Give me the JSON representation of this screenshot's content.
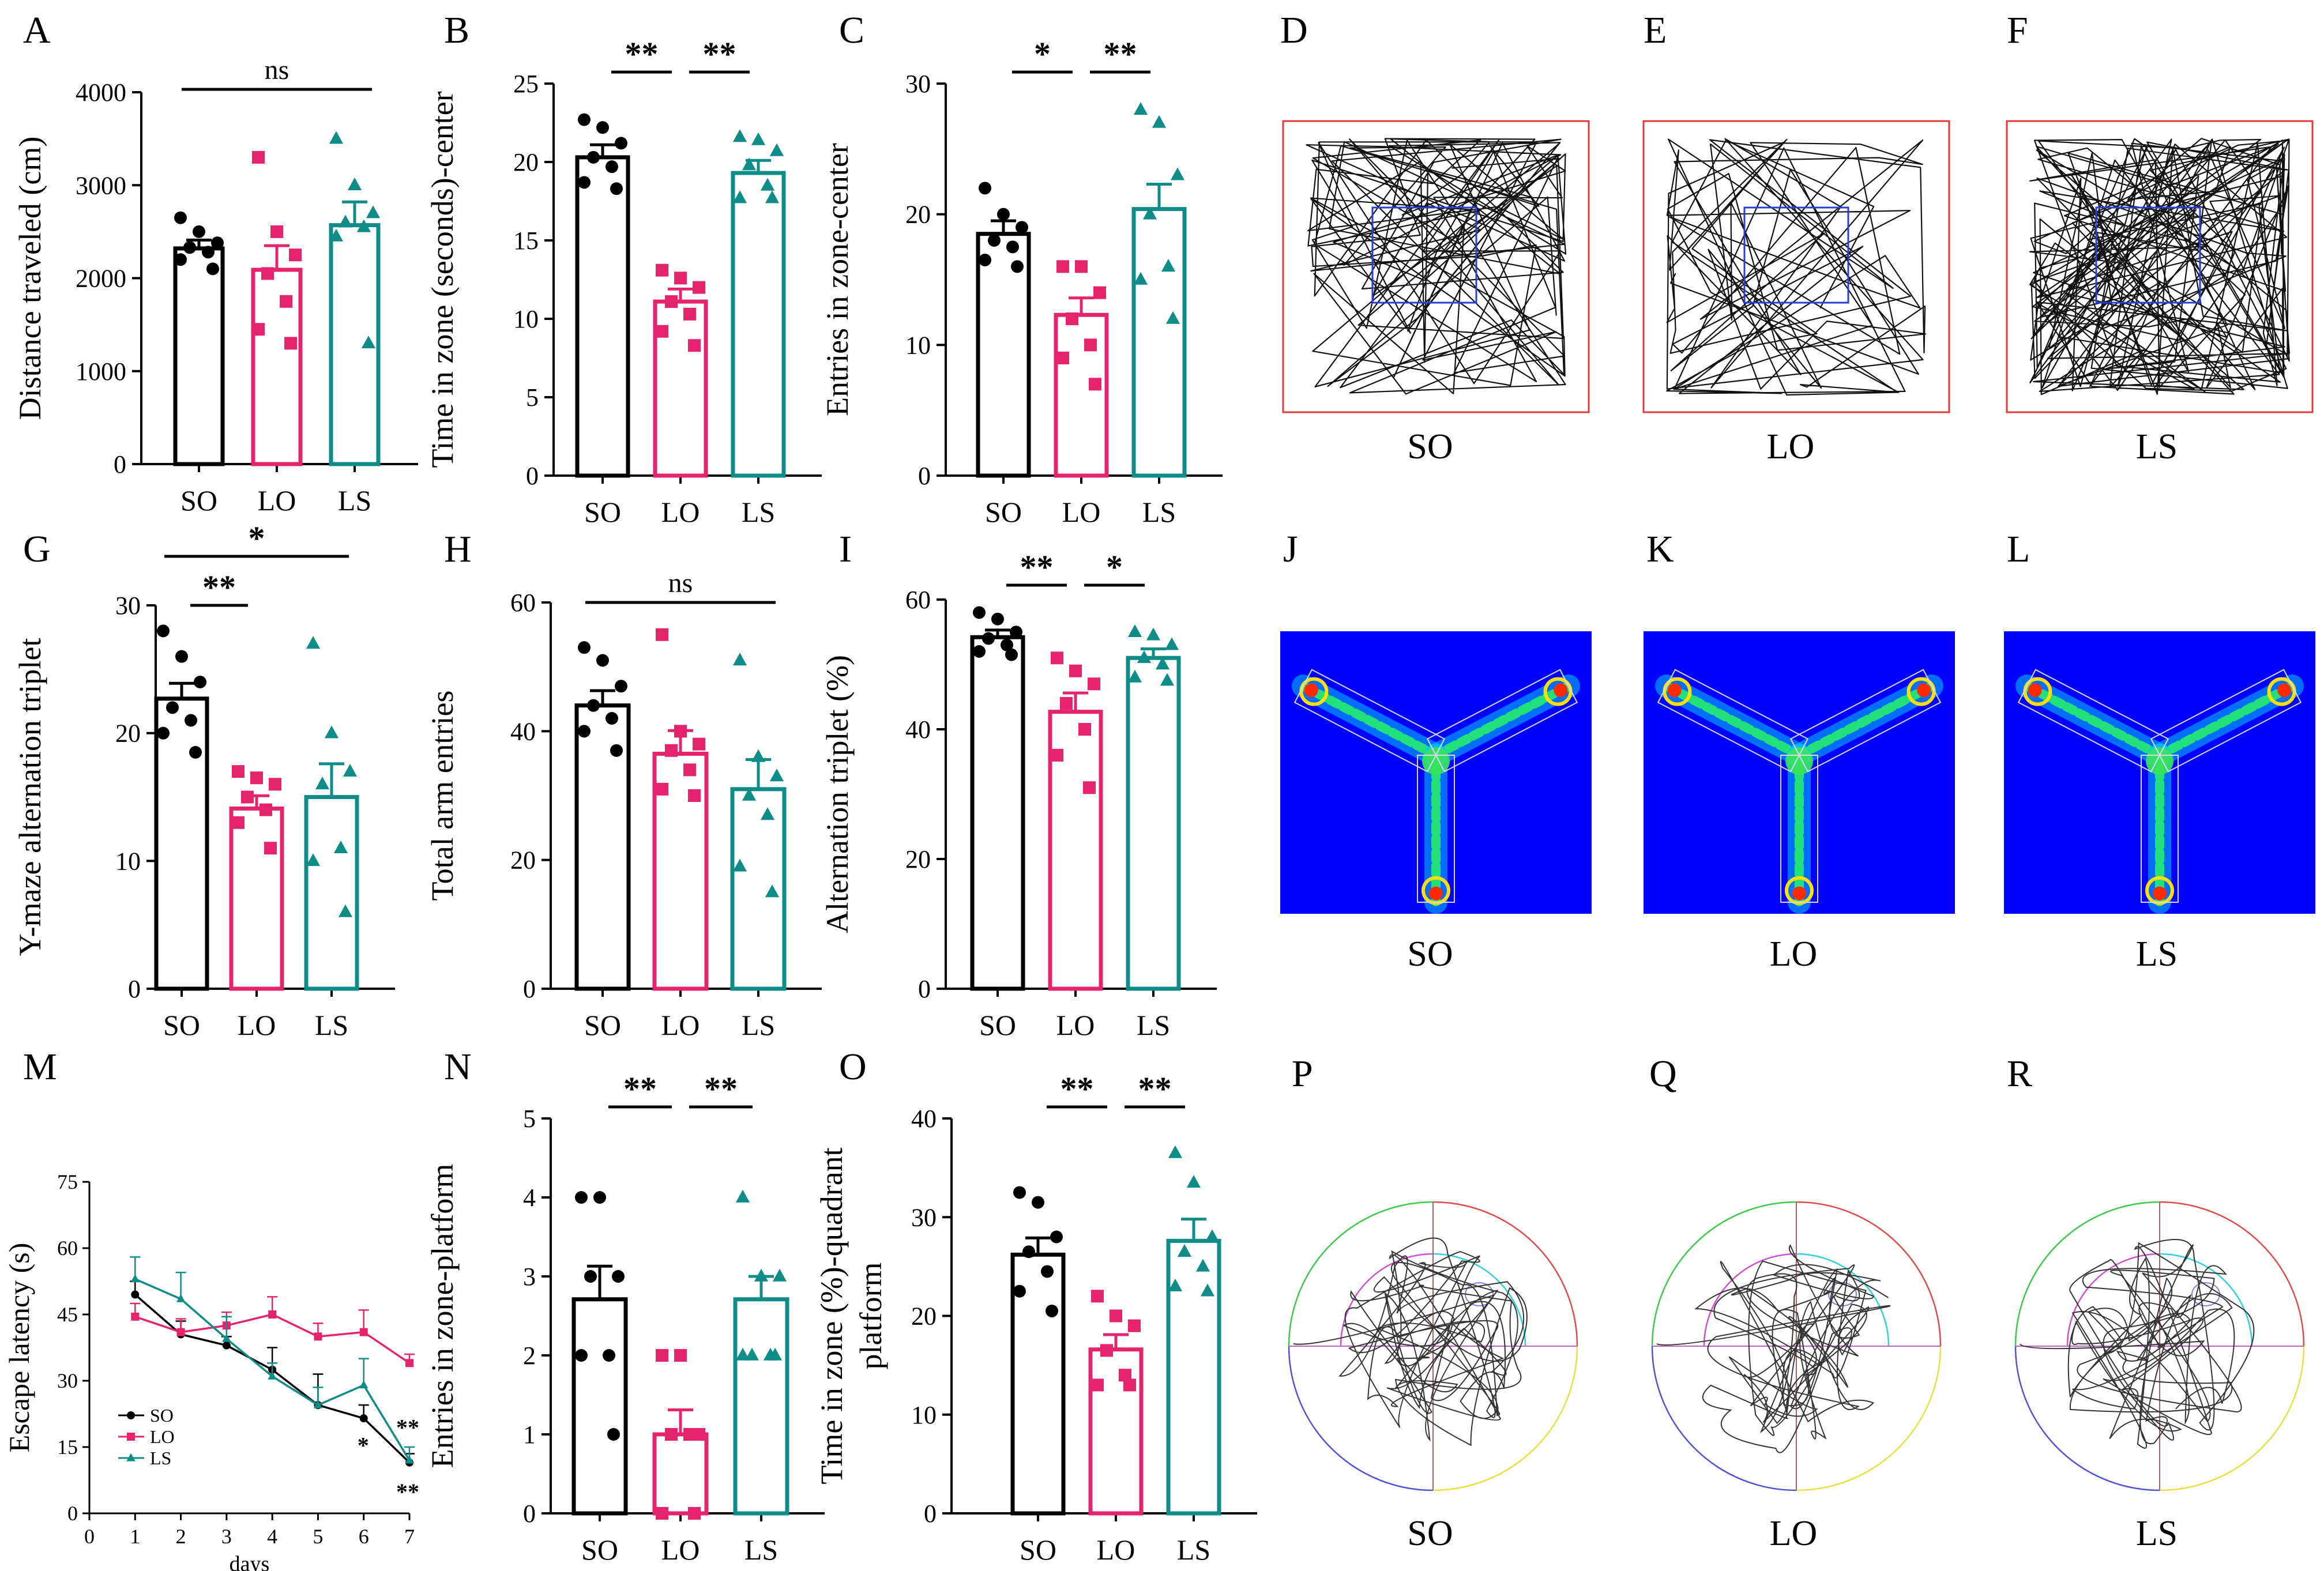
{
  "colors": {
    "SO": "#000000",
    "LO": "#e6246e",
    "LS": "#0e8c87",
    "boxRed": "#e23a3a",
    "boxBlue": "#2a3dd6",
    "heatBg": "#0000ff"
  },
  "chart_data": [
    {
      "panel": "A",
      "type": "bar",
      "ylabel": "Distance traveled (cm)",
      "categories": [
        "SO",
        "LO",
        "LS"
      ],
      "yticks": [
        0,
        1000,
        2000,
        3000,
        4000
      ],
      "ylim": [
        0,
        4000
      ],
      "means": [
        2320,
        2090,
        2570
      ],
      "sem": [
        90,
        260,
        250
      ],
      "points": [
        [
          2650,
          2500,
          2380,
          2330,
          2280,
          2200,
          2100
        ],
        [
          3300,
          2500,
          2250,
          2050,
          1750,
          1450,
          1300
        ],
        [
          3500,
          3000,
          2700,
          2600,
          2550,
          2450,
          1300
        ]
      ],
      "brackets": [
        {
          "from": 0,
          "to": 2,
          "label": "ns"
        }
      ],
      "xticklabels": [
        "SO",
        "LO",
        "LS"
      ]
    },
    {
      "panel": "B",
      "type": "bar",
      "ylabel": "Time in zone (seconds)-center",
      "categories": [
        "SO",
        "LO",
        "LS"
      ],
      "yticks": [
        0,
        5,
        10,
        15,
        20,
        25
      ],
      "ylim": [
        0,
        25
      ],
      "means": [
        20.3,
        11.1,
        19.3
      ],
      "sem": [
        0.8,
        0.8,
        0.8
      ],
      "points": [
        [
          22.7,
          22.2,
          21.2,
          20.3,
          19.7,
          18.7,
          18.3
        ],
        [
          13.1,
          12.6,
          12.0,
          11.1,
          10.3,
          9.2,
          8.3
        ],
        [
          21.6,
          21.4,
          20.7,
          19.8,
          18.5,
          17.7,
          17.7
        ]
      ],
      "brackets": [
        {
          "from": 0,
          "to": 1,
          "label": "**"
        },
        {
          "from": 1,
          "to": 2,
          "label": "**"
        }
      ],
      "xticklabels": [
        "SO",
        "LO",
        "LS"
      ]
    },
    {
      "panel": "C",
      "type": "bar",
      "ylabel": "Entries in zone-center",
      "categories": [
        "SO",
        "LO",
        "LS"
      ],
      "yticks": [
        0,
        10,
        20,
        30
      ],
      "ylim": [
        0,
        30
      ],
      "means": [
        18.5,
        12.3,
        20.4
      ],
      "sem": [
        1.0,
        1.3,
        1.9
      ],
      "points": [
        [
          22,
          20,
          19,
          18,
          17.5,
          16.5,
          16
        ],
        [
          16,
          16,
          14,
          12,
          10,
          9,
          7
        ],
        [
          28,
          27,
          23,
          20,
          16,
          15,
          12
        ]
      ],
      "brackets": [
        {
          "from": 0,
          "to": 1,
          "label": "*"
        },
        {
          "from": 1,
          "to": 2,
          "label": "**"
        }
      ],
      "xticklabels": [
        "SO",
        "LO",
        "LS"
      ]
    },
    {
      "panel": "G",
      "type": "bar",
      "ylabel": "Y-maze alternation triplet",
      "categories": [
        "SO",
        "LO",
        "LS"
      ],
      "yticks": [
        0,
        10,
        20,
        30
      ],
      "ylim": [
        0,
        30
      ],
      "means": [
        22.7,
        14.1,
        15.0
      ],
      "sem": [
        1.2,
        1.0,
        2.6
      ],
      "points": [
        [
          28,
          26,
          24,
          22,
          21,
          20,
          18.5
        ],
        [
          17,
          16.5,
          16,
          15,
          14,
          13,
          11
        ],
        [
          27,
          20,
          17,
          16,
          11,
          10,
          6
        ]
      ],
      "brackets": [
        {
          "from": 0,
          "to": 1,
          "label": "**"
        },
        {
          "from": 0,
          "to": 2,
          "label": "*"
        }
      ],
      "xticklabels": [
        "SO",
        "LO",
        "LS"
      ]
    },
    {
      "panel": "H",
      "type": "bar",
      "ylabel": "Total arm entries",
      "categories": [
        "SO",
        "LO",
        "LS"
      ],
      "yticks": [
        0,
        20,
        40,
        60
      ],
      "ylim": [
        0,
        60
      ],
      "means": [
        44,
        36.5,
        31
      ],
      "sem": [
        2.3,
        3.6,
        4.6
      ],
      "points": [
        [
          53,
          51,
          47,
          44,
          42,
          40,
          37
        ],
        [
          55,
          40,
          38,
          37,
          34,
          31,
          30
        ],
        [
          51,
          36,
          33,
          30,
          27,
          19,
          15
        ]
      ],
      "brackets": [
        {
          "from": 0,
          "to": 2,
          "label": "ns"
        }
      ],
      "xticklabels": [
        "SO",
        "LO",
        "LS"
      ]
    },
    {
      "panel": "I",
      "type": "bar",
      "ylabel": "Alternation triplet (%)",
      "categories": [
        "SO",
        "LO",
        "LS"
      ],
      "yticks": [
        0,
        20,
        40,
        60
      ],
      "ylim": [
        0,
        60
      ],
      "means": [
        54.2,
        42.7,
        51.0
      ],
      "sem": [
        1.1,
        2.9,
        1.4
      ],
      "points": [
        [
          58,
          57,
          55,
          54,
          53,
          52,
          51.5
        ],
        [
          51,
          49,
          47,
          44,
          40,
          36,
          31
        ],
        [
          55,
          54.5,
          53,
          51,
          50,
          48,
          47.5
        ]
      ],
      "brackets": [
        {
          "from": 0,
          "to": 1,
          "label": "**"
        },
        {
          "from": 1,
          "to": 2,
          "label": "*"
        }
      ],
      "xticklabels": [
        "SO",
        "LO",
        "LS"
      ]
    },
    {
      "panel": "M",
      "type": "line",
      "xlabel": "days",
      "ylabel": "Escape latency (s)",
      "x": [
        1,
        2,
        3,
        4,
        5,
        6,
        7
      ],
      "xlim": [
        0,
        7
      ],
      "ylim": [
        0,
        75
      ],
      "yticks": [
        0,
        15,
        30,
        45,
        60,
        75
      ],
      "xticks": [
        0,
        1,
        2,
        3,
        4,
        5,
        6,
        7
      ],
      "series": [
        {
          "name": "SO",
          "values": [
            49.5,
            40.5,
            38.0,
            32.5,
            24.5,
            21.5,
            11.5
          ],
          "err": [
            3,
            3,
            2,
            5,
            7,
            3,
            2
          ],
          "marker": "circle"
        },
        {
          "name": "LO",
          "values": [
            44.5,
            41.0,
            42.5,
            45.0,
            40.0,
            41.0,
            34.0
          ],
          "err": [
            3,
            3,
            3,
            4,
            3,
            5,
            2
          ],
          "marker": "square"
        },
        {
          "name": "LS",
          "values": [
            53.0,
            48.5,
            39.5,
            31.0,
            24.5,
            29.0,
            12.0
          ],
          "err": [
            5,
            6,
            5,
            3,
            4,
            6,
            3
          ],
          "marker": "triangle"
        }
      ],
      "annotations": [
        {
          "x": 6,
          "y": 16,
          "label": "*"
        },
        {
          "x": 7,
          "y": 20,
          "label": "**"
        },
        {
          "x": 7,
          "y": 5.5,
          "label": "**"
        }
      ]
    },
    {
      "panel": "N",
      "type": "bar",
      "ylabel": "Entries in zone-platform",
      "categories": [
        "SO",
        "LO",
        "LS"
      ],
      "yticks": [
        0,
        1,
        2,
        3,
        4,
        5
      ],
      "ylim": [
        0,
        5
      ],
      "means": [
        2.71,
        1.0,
        2.71
      ],
      "sem": [
        0.42,
        0.31,
        0.29
      ],
      "points": [
        [
          4,
          4,
          3,
          3,
          2,
          2,
          1
        ],
        [
          2,
          2,
          1,
          1,
          1,
          0,
          0
        ],
        [
          4,
          3,
          3,
          2,
          2,
          2,
          2
        ]
      ],
      "brackets": [
        {
          "from": 0,
          "to": 1,
          "label": "**"
        },
        {
          "from": 1,
          "to": 2,
          "label": "**"
        }
      ],
      "xticklabels": [
        "SO",
        "LO",
        "LS"
      ]
    },
    {
      "panel": "O",
      "type": "bar",
      "ylabel": "Time in zone (%)-quadrant platform",
      "ylabel_lines": [
        "Time in zone (%)-quadrant",
        "platform"
      ],
      "categories": [
        "SO",
        "LO",
        "LS"
      ],
      "yticks": [
        0,
        10,
        20,
        30,
        40
      ],
      "ylim": [
        0,
        40
      ],
      "means": [
        26.2,
        16.6,
        27.6
      ],
      "sem": [
        1.7,
        1.5,
        2.2
      ],
      "points": [
        [
          32.5,
          31.5,
          28,
          26.5,
          24.5,
          22.5,
          20.5
        ],
        [
          22,
          20,
          19,
          16.5,
          14,
          13,
          13
        ],
        [
          36.5,
          33.5,
          28,
          26.5,
          25,
          23,
          22.5
        ]
      ],
      "brackets": [
        {
          "from": 0,
          "to": 1,
          "label": "**"
        },
        {
          "from": 1,
          "to": 2,
          "label": "**"
        }
      ],
      "xticklabels": [
        "SO",
        "LO",
        "LS"
      ]
    }
  ],
  "image_panels": [
    {
      "panel": "D",
      "kind": "open-field-track",
      "caption": "SO",
      "seed": 7,
      "density": 1
    },
    {
      "panel": "E",
      "kind": "open-field-track",
      "caption": "LO",
      "seed": 19,
      "density": 0
    },
    {
      "panel": "F",
      "kind": "open-field-track",
      "caption": "LS",
      "seed": 31,
      "density": 2
    },
    {
      "panel": "J",
      "kind": "y-maze-heatmap",
      "caption": "SO"
    },
    {
      "panel": "K",
      "kind": "y-maze-heatmap",
      "caption": "LO"
    },
    {
      "panel": "L",
      "kind": "y-maze-heatmap",
      "caption": "LS"
    },
    {
      "panel": "P",
      "kind": "water-maze-track",
      "caption": "SO",
      "seed": 5
    },
    {
      "panel": "Q",
      "kind": "water-maze-track",
      "caption": "LO",
      "seed": 23
    },
    {
      "panel": "R",
      "kind": "water-maze-track",
      "caption": "LS",
      "seed": 41
    }
  ]
}
